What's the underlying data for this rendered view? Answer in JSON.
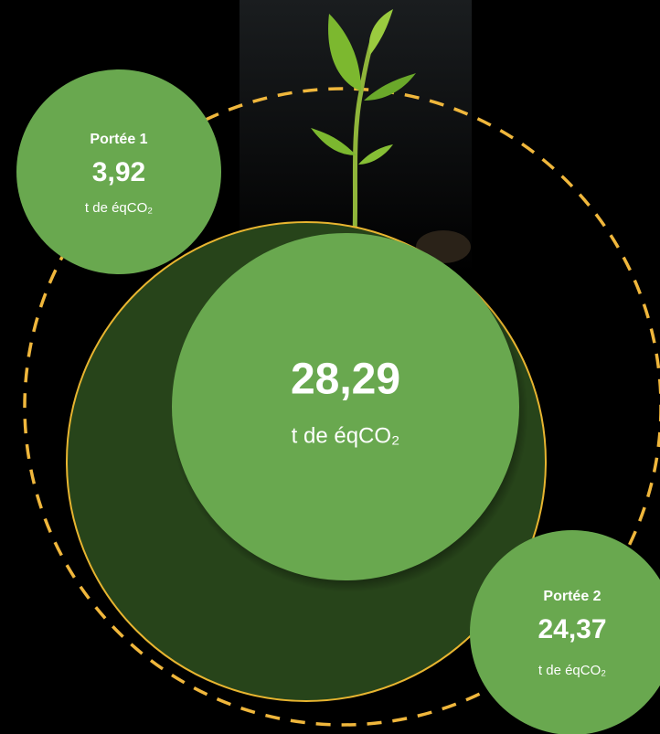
{
  "total": {
    "value": "28,29",
    "unit": "t de éqCO₂"
  },
  "scopes": [
    {
      "label": "Portée 1",
      "value": "3,92",
      "unit": "t de éqCO₂"
    },
    {
      "label": "Portée 2",
      "value": "24,37",
      "unit": "t de éqCO₂"
    }
  ]
}
